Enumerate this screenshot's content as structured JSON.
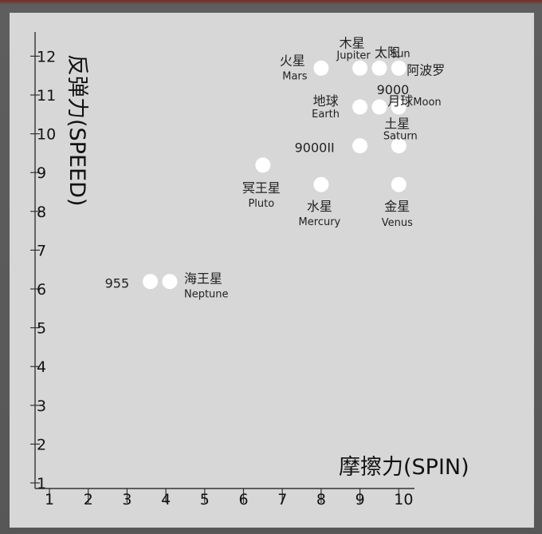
{
  "chart_data": {
    "type": "scatter",
    "title": "",
    "xlabel": "摩擦力(SPIN)",
    "ylabel": "反弹力(SPEED)",
    "xlim": [
      1,
      10
    ],
    "ylim": [
      1,
      12
    ],
    "x_ticks": [
      "1",
      "2",
      "3",
      "4",
      "5",
      "6",
      "7",
      "8",
      "9",
      "10"
    ],
    "y_ticks": [
      "1",
      "2",
      "3",
      "4",
      "5",
      "6",
      "7",
      "8",
      "9",
      "10",
      "11",
      "12"
    ],
    "grid": false,
    "point_color": "#ffffff",
    "points": [
      {
        "x": 3.6,
        "y": 6.5,
        "label_zh": "955",
        "label_en": ""
      },
      {
        "x": 4.1,
        "y": 6.5,
        "label_zh": "海王星",
        "label_en": "Neptune"
      },
      {
        "x": 6.5,
        "y": 9.5,
        "label_zh": "冥王星",
        "label_en": "Pluto"
      },
      {
        "x": 8.0,
        "y": 12,
        "label_zh": "火星",
        "label_en": "Mars"
      },
      {
        "x": 8.0,
        "y": 9,
        "label_zh": "水星",
        "label_en": "Mercury"
      },
      {
        "x": 9.0,
        "y": 12,
        "label_zh": "木星",
        "label_en": "Jupiter"
      },
      {
        "x": 9.5,
        "y": 12,
        "label_zh": "太阳",
        "label_en": "Sun"
      },
      {
        "x": 10.0,
        "y": 12,
        "label_zh": "阿波罗",
        "label_en": ""
      },
      {
        "x": 9.0,
        "y": 11,
        "label_zh": "地球",
        "label_en": "Earth"
      },
      {
        "x": 9.5,
        "y": 11,
        "label_zh": "9000",
        "label_en": ""
      },
      {
        "x": 10.0,
        "y": 11,
        "label_zh": "月球",
        "label_en": "Moon"
      },
      {
        "x": 9.0,
        "y": 10,
        "label_zh": "9000II",
        "label_en": ""
      },
      {
        "x": 10.0,
        "y": 10,
        "label_zh": "土星",
        "label_en": "Saturn"
      },
      {
        "x": 10.0,
        "y": 9,
        "label_zh": "金星",
        "label_en": "Venus"
      }
    ]
  }
}
